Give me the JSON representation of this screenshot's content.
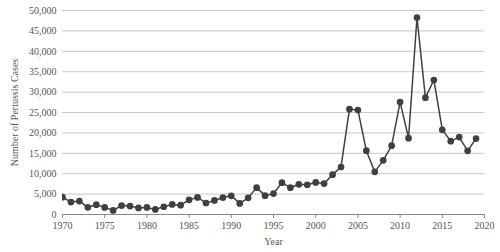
{
  "chart_data": {
    "type": "line",
    "x_label": "Year",
    "y_label": "Number of Pertussis Cases",
    "x": [
      1970,
      1971,
      1972,
      1973,
      1974,
      1975,
      1976,
      1977,
      1978,
      1979,
      1980,
      1981,
      1982,
      1983,
      1984,
      1985,
      1986,
      1987,
      1988,
      1989,
      1990,
      1991,
      1992,
      1993,
      1994,
      1995,
      1996,
      1997,
      1998,
      1999,
      2000,
      2001,
      2002,
      2003,
      2004,
      2005,
      2006,
      2007,
      2008,
      2009,
      2010,
      2011,
      2012,
      2013,
      2014,
      2015,
      2016,
      2017,
      2018,
      2019
    ],
    "values": [
      4249,
      3036,
      3287,
      1759,
      2402,
      1738,
      1010,
      2177,
      2063,
      1623,
      1730,
      1248,
      1895,
      2463,
      2276,
      3589,
      4195,
      2823,
      3450,
      4157,
      4570,
      2719,
      4083,
      6586,
      4617,
      5137,
      7796,
      6564,
      7405,
      7288,
      7867,
      7580,
      9771,
      11647,
      25827,
      25616,
      15632,
      10454,
      13278,
      16858,
      27550,
      18719,
      48277,
      28639,
      32971,
      20762,
      17972,
      18975,
      15609,
      18617
    ],
    "color": "#404040",
    "marker": "circle",
    "line_style": "solid",
    "xlim": [
      1970,
      2020
    ],
    "xticks": [
      1970,
      1975,
      1980,
      1985,
      1990,
      1995,
      2000,
      2005,
      2010,
      2015,
      2020
    ],
    "ylim": [
      0,
      50000
    ],
    "yticks": [
      0,
      {
        "value": 5000,
        "label": "5,000"
      },
      {
        "value": 10000,
        "label": "10,000"
      },
      {
        "value": 15000,
        "label": "15,000"
      },
      {
        "value": 20000,
        "label": "20,000"
      },
      {
        "value": 25000,
        "label": "25,000"
      },
      {
        "value": 30000,
        "label": "30,000"
      },
      {
        "value": 35000,
        "label": "35,000"
      },
      {
        "value": 40000,
        "label": "40,000"
      },
      {
        "value": 45000,
        "label": "45,000"
      },
      {
        "value": 50000,
        "label": "50,000"
      }
    ],
    "grid": true
  }
}
